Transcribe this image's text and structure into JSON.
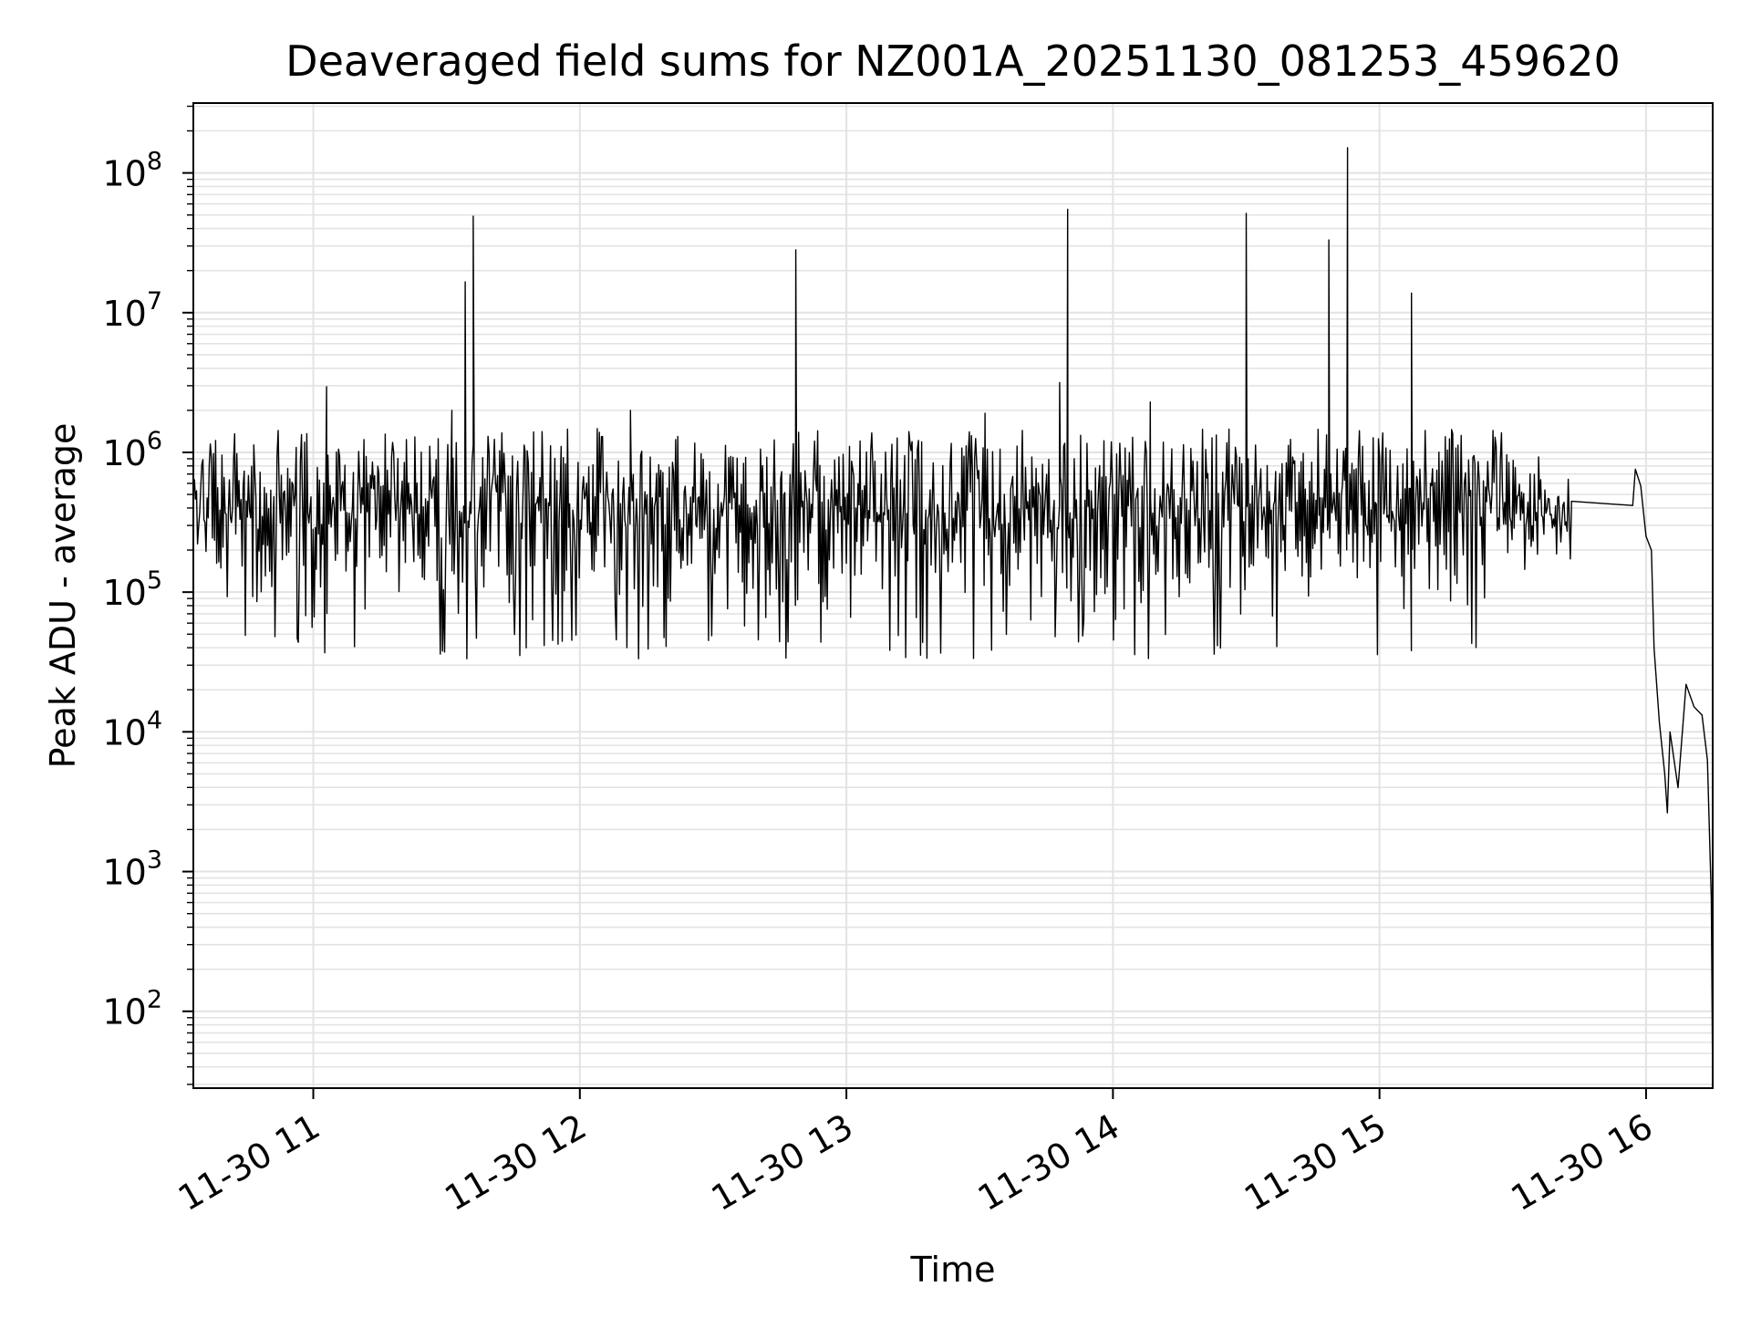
{
  "chart_data": {
    "type": "line",
    "title": "Deaveraged field sums for NZ001A_20251130_081253_459620",
    "xlabel": "Time",
    "ylabel": "Peak ADU - average",
    "yscale": "log",
    "ylim_log10": [
      1.45,
      8.5
    ],
    "xlim_hours": [
      10.55,
      16.25
    ],
    "grid": true,
    "x_ticks": [
      {
        "hour": 11,
        "label": "11-30 11"
      },
      {
        "hour": 12,
        "label": "11-30 12"
      },
      {
        "hour": 13,
        "label": "11-30 13"
      },
      {
        "hour": 14,
        "label": "11-30 14"
      },
      {
        "hour": 15,
        "label": "11-30 15"
      },
      {
        "hour": 16,
        "label": "11-30 16"
      }
    ],
    "y_ticks": [
      {
        "exp": 2,
        "base": "10",
        "sup": "2"
      },
      {
        "exp": 3,
        "base": "10",
        "sup": "3"
      },
      {
        "exp": 4,
        "base": "10",
        "sup": "4"
      },
      {
        "exp": 5,
        "base": "10",
        "sup": "5"
      },
      {
        "exp": 6,
        "base": "10",
        "sup": "6"
      },
      {
        "exp": 7,
        "base": "10",
        "sup": "7"
      },
      {
        "exp": 8,
        "base": "10",
        "sup": "8"
      }
    ],
    "series": [
      {
        "name": "peak_adu_minus_average",
        "color": "#000000",
        "noise_band": {
          "start_hour": 10.55,
          "end_hour": 15.72,
          "low_log10": 4.7,
          "high_log10": 6.05,
          "approx_points": 1300
        },
        "spikes": [
          {
            "hour": 11.05,
            "log10": 6.47
          },
          {
            "hour": 11.52,
            "log10": 6.3
          },
          {
            "hour": 11.57,
            "log10": 7.22
          },
          {
            "hour": 11.6,
            "log10": 7.69
          },
          {
            "hour": 12.19,
            "log10": 6.3
          },
          {
            "hour": 12.81,
            "log10": 7.45
          },
          {
            "hour": 13.52,
            "log10": 6.28
          },
          {
            "hour": 13.8,
            "log10": 6.5
          },
          {
            "hour": 13.83,
            "log10": 7.74
          },
          {
            "hour": 14.14,
            "log10": 6.36
          },
          {
            "hour": 14.5,
            "log10": 7.71
          },
          {
            "hour": 14.81,
            "log10": 7.52
          },
          {
            "hour": 14.88,
            "log10": 8.18
          },
          {
            "hour": 15.12,
            "log10": 7.14
          }
        ],
        "tail": [
          {
            "hour": 15.72,
            "log10": 5.65
          },
          {
            "hour": 15.95,
            "log10": 5.62
          },
          {
            "hour": 15.96,
            "log10": 5.88
          },
          {
            "hour": 15.98,
            "log10": 5.76
          },
          {
            "hour": 16.0,
            "log10": 5.4
          },
          {
            "hour": 16.02,
            "log10": 5.3
          },
          {
            "hour": 16.03,
            "log10": 4.6
          },
          {
            "hour": 16.05,
            "log10": 4.07
          },
          {
            "hour": 16.07,
            "log10": 3.7
          },
          {
            "hour": 16.08,
            "log10": 3.42
          },
          {
            "hour": 16.09,
            "log10": 4.0
          },
          {
            "hour": 16.12,
            "log10": 3.6
          },
          {
            "hour": 16.15,
            "log10": 4.34
          },
          {
            "hour": 16.18,
            "log10": 4.18
          },
          {
            "hour": 16.21,
            "log10": 4.12
          },
          {
            "hour": 16.23,
            "log10": 3.8
          },
          {
            "hour": 16.245,
            "log10": 2.8
          },
          {
            "hour": 16.25,
            "log10": 1.45
          }
        ]
      }
    ]
  }
}
